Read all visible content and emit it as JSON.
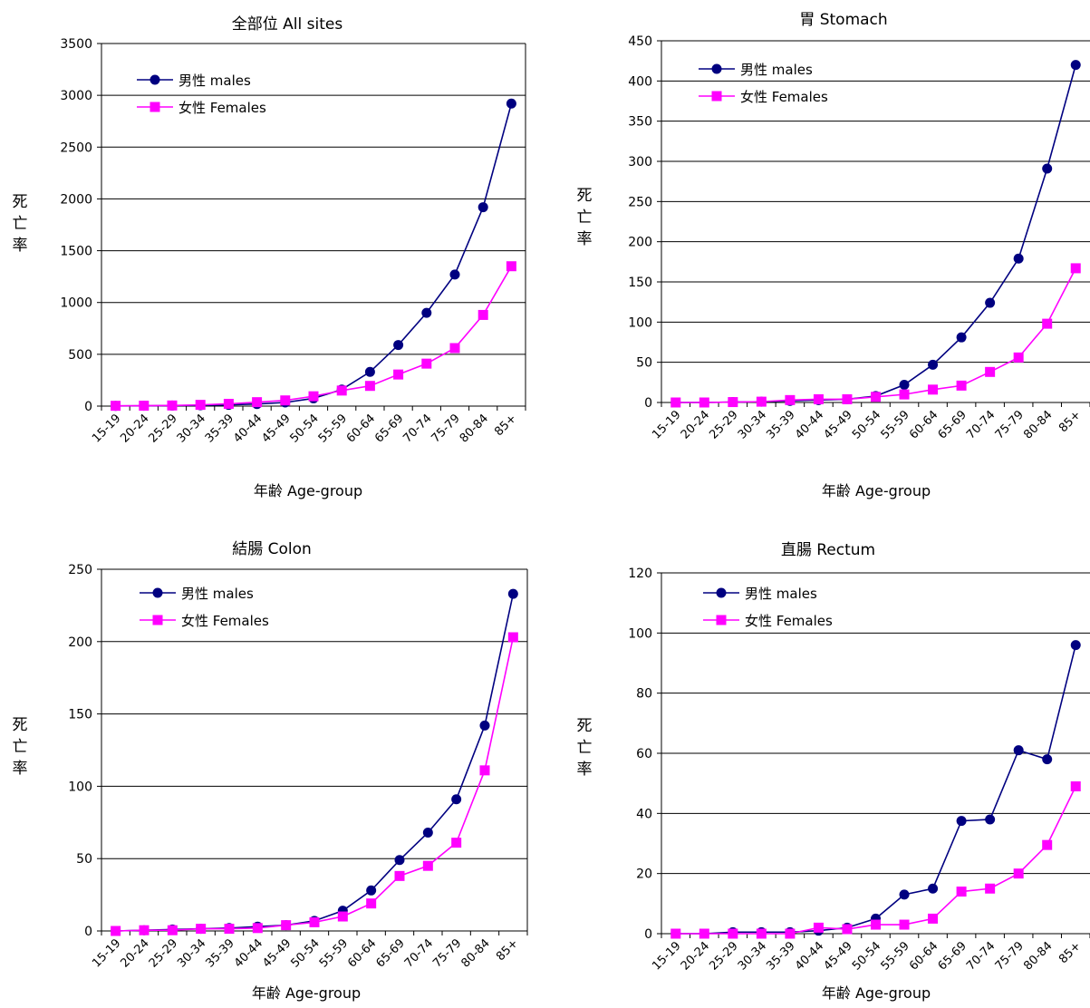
{
  "colors": {
    "males": "#000080",
    "females": "#ff00ff",
    "grid": "#000000"
  },
  "charts": [
    {
      "type": "line",
      "title": "全部位 All sites",
      "xlabel": "年齢 Age-group",
      "ylabel": "死亡率",
      "categories": [
        "15-19",
        "20-24",
        "25-29",
        "30-34",
        "35-39",
        "40-44",
        "45-49",
        "50-54",
        "55-59",
        "60-64",
        "65-69",
        "70-74",
        "75-79",
        "80-84",
        "85+"
      ],
      "ylim": [
        0,
        3500
      ],
      "yticks": [
        0,
        500,
        1000,
        1500,
        2000,
        2500,
        3000,
        3500
      ],
      "legend_position": "top-left",
      "series": [
        {
          "name": "男性 males",
          "marker": "circle",
          "values": [
            2,
            3,
            5,
            8,
            12,
            20,
            35,
            75,
            160,
            330,
            590,
            900,
            1270,
            1920,
            2920
          ]
        },
        {
          "name": "女性 Females",
          "marker": "square",
          "values": [
            3,
            4,
            6,
            12,
            22,
            38,
            55,
            95,
            150,
            195,
            305,
            410,
            560,
            880,
            1350
          ]
        }
      ]
    },
    {
      "type": "line",
      "title": "胃 Stomach",
      "xlabel": "年齢 Age-group",
      "ylabel": "死亡率",
      "categories": [
        "15-19",
        "20-24",
        "25-29",
        "30-34",
        "35-39",
        "40-44",
        "45-49",
        "50-54",
        "55-59",
        "60-64",
        "65-69",
        "70-74",
        "75-79",
        "80-84",
        "85+"
      ],
      "ylim": [
        0,
        450
      ],
      "yticks": [
        0,
        50,
        100,
        150,
        200,
        250,
        300,
        350,
        400,
        450
      ],
      "legend_position": "top-left",
      "series": [
        {
          "name": "男性 males",
          "marker": "circle",
          "values": [
            0,
            0,
            0.5,
            1,
            2,
            3,
            4,
            8,
            22,
            47,
            81,
            124,
            179,
            291,
            420
          ]
        },
        {
          "name": "女性 Females",
          "marker": "square",
          "values": [
            0,
            0,
            0.5,
            1,
            3,
            4,
            4,
            7,
            10,
            16,
            21,
            38,
            56,
            98,
            167
          ]
        }
      ]
    },
    {
      "type": "line",
      "title": "結腸 Colon",
      "xlabel": "年齢 Age-group",
      "ylabel": "死亡率",
      "categories": [
        "15-19",
        "20-24",
        "25-29",
        "30-34",
        "35-39",
        "40-44",
        "45-49",
        "50-54",
        "55-59",
        "60-64",
        "65-69",
        "70-74",
        "75-79",
        "80-84",
        "85+"
      ],
      "ylim": [
        0,
        250
      ],
      "yticks": [
        0,
        50,
        100,
        150,
        200,
        250
      ],
      "legend_position": "top-left",
      "series": [
        {
          "name": "男性 males",
          "marker": "circle",
          "values": [
            0,
            0.5,
            1,
            1.5,
            2,
            3,
            4,
            7,
            14,
            28,
            49,
            68,
            91,
            142,
            233
          ]
        },
        {
          "name": "女性 Females",
          "marker": "square",
          "values": [
            0,
            0.5,
            0.5,
            1.5,
            1.5,
            2,
            4,
            6,
            10,
            19,
            38,
            45,
            61,
            111,
            203
          ]
        }
      ]
    },
    {
      "type": "line",
      "title": "直腸 Rectum",
      "xlabel": "年齢 Age-group",
      "ylabel": "死亡率",
      "categories": [
        "15-19",
        "20-24",
        "25-29",
        "30-34",
        "35-39",
        "40-44",
        "45-49",
        "50-54",
        "55-59",
        "60-64",
        "65-69",
        "70-74",
        "75-79",
        "80-84",
        "85+"
      ],
      "ylim": [
        0,
        120
      ],
      "yticks": [
        0,
        20,
        40,
        60,
        80,
        100,
        120
      ],
      "legend_position": "top-left",
      "series": [
        {
          "name": "男性 males",
          "marker": "circle",
          "values": [
            0,
            0,
            0.5,
            0.5,
            0.5,
            1,
            2,
            5,
            13,
            15,
            37.5,
            38,
            61,
            58,
            96
          ]
        },
        {
          "name": "女性 Females",
          "marker": "square",
          "values": [
            0,
            0,
            0,
            0,
            0,
            2,
            1.5,
            3,
            3,
            5,
            14,
            15,
            20,
            29.5,
            49
          ]
        }
      ]
    }
  ]
}
